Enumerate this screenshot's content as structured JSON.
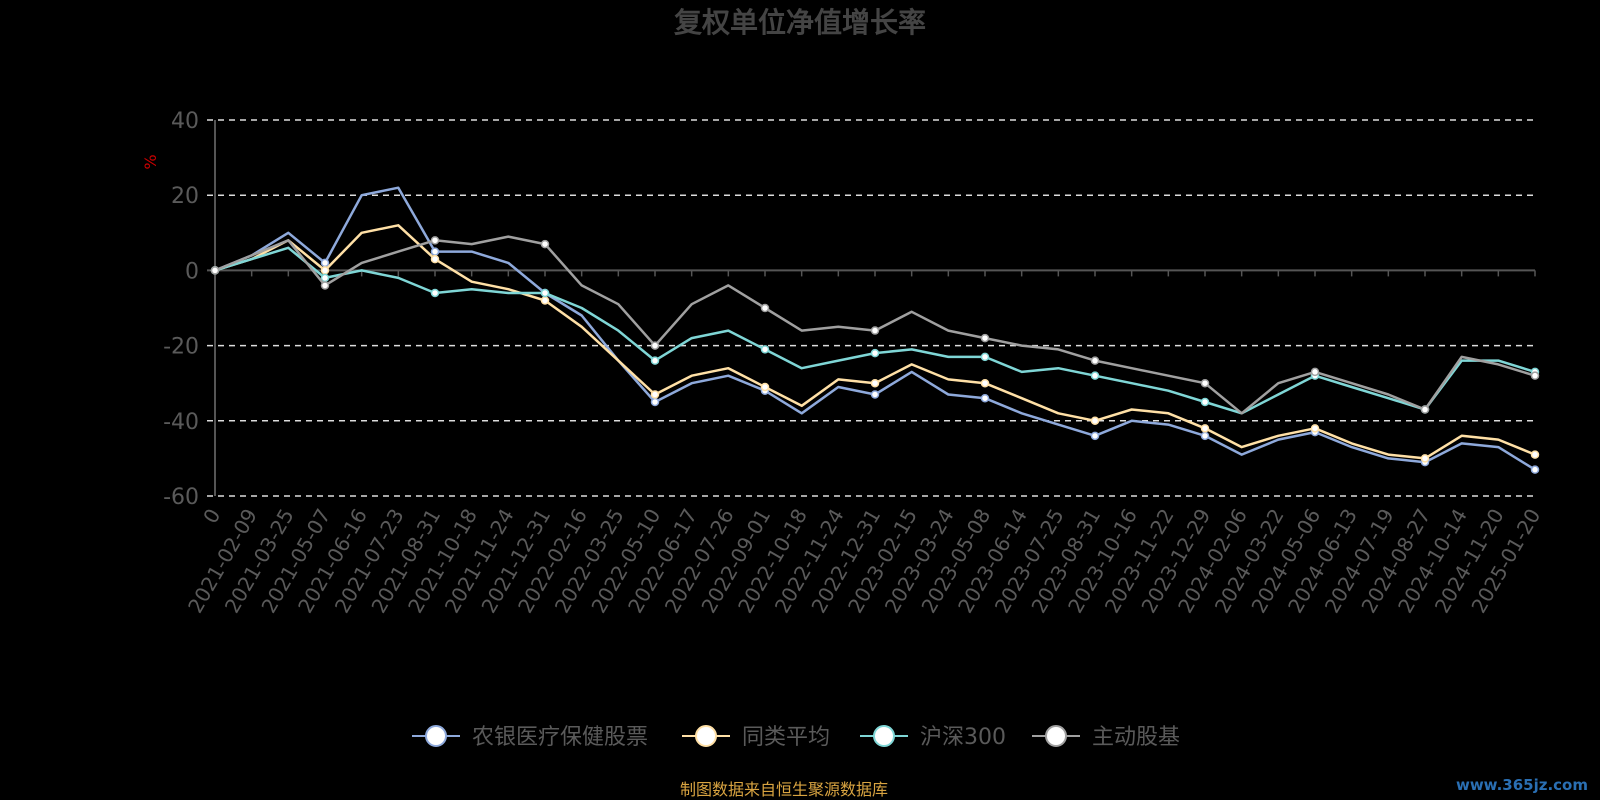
{
  "chart_data": {
    "type": "line",
    "title": "复权单位净值增长率",
    "ylabel": "%",
    "ylim": [
      -60,
      40
    ],
    "yticks": [
      -60,
      -40,
      -20,
      0,
      20,
      40
    ],
    "grid": true,
    "legend_position": "bottom",
    "categories": [
      "0",
      "2021-02-09",
      "2021-03-25",
      "2021-05-07",
      "2021-06-16",
      "2021-07-23",
      "2021-08-31",
      "2021-10-18",
      "2021-11-24",
      "2021-12-31",
      "2022-02-16",
      "2022-03-25",
      "2022-05-10",
      "2022-06-17",
      "2022-07-26",
      "2022-09-01",
      "2022-10-18",
      "2022-11-24",
      "2022-12-31",
      "2023-02-15",
      "2023-03-24",
      "2023-05-08",
      "2023-06-14",
      "2023-07-25",
      "2023-08-31",
      "2023-10-16",
      "2023-11-22",
      "2023-12-29",
      "2024-02-06",
      "2024-03-22",
      "2024-05-06",
      "2024-06-13",
      "2024-07-19",
      "2024-08-27",
      "2024-10-14",
      "2024-11-20",
      "2025-01-20"
    ],
    "series": [
      {
        "name": "农银医疗保健股票",
        "color": "#8ea9db",
        "values": [
          0,
          4,
          10,
          2,
          20,
          22,
          5,
          5,
          2,
          -6,
          -12,
          -24,
          -35,
          -30,
          -28,
          -32,
          -38,
          -31,
          -33,
          -27,
          -33,
          -34,
          -38,
          -41,
          -44,
          -40,
          -41,
          -44,
          -49,
          -45,
          -43,
          -47,
          -50,
          -51,
          -46,
          -47,
          -53
        ]
      },
      {
        "name": "同类平均",
        "color": "#ffe0a6",
        "values": [
          0,
          3,
          8,
          0,
          10,
          12,
          3,
          -3,
          -5,
          -8,
          -15,
          -24,
          -33,
          -28,
          -26,
          -31,
          -36,
          -29,
          -30,
          -25,
          -29,
          -30,
          -34,
          -38,
          -40,
          -37,
          -38,
          -42,
          -47,
          -44,
          -42,
          -46,
          -49,
          -50,
          -44,
          -45,
          -49
        ]
      },
      {
        "name": "沪深300",
        "color": "#7fd6d6",
        "values": [
          0,
          3,
          6,
          -2,
          0,
          -2,
          -6,
          -5,
          -6,
          -6,
          -10,
          -16,
          -24,
          -18,
          -16,
          -21,
          -26,
          -24,
          -22,
          -21,
          -23,
          -23,
          -27,
          -26,
          -28,
          -30,
          -32,
          -35,
          -38,
          -33,
          -28,
          -31,
          -34,
          -37,
          -24,
          -24,
          -27
        ]
      },
      {
        "name": "主动股基",
        "color": "#a0a0a0",
        "values": [
          0,
          4,
          8,
          -4,
          2,
          5,
          8,
          7,
          9,
          7,
          -4,
          -9,
          -20,
          -9,
          -4,
          -10,
          -16,
          -15,
          -16,
          -11,
          -16,
          -18,
          -20,
          -21,
          -24,
          -26,
          -28,
          -30,
          -38,
          -30,
          -27,
          -30,
          -33,
          -37,
          -23,
          -25,
          -28
        ]
      }
    ],
    "source_note": "制图数据来自恒生聚源数据库",
    "watermark": "www.365jz.com"
  }
}
